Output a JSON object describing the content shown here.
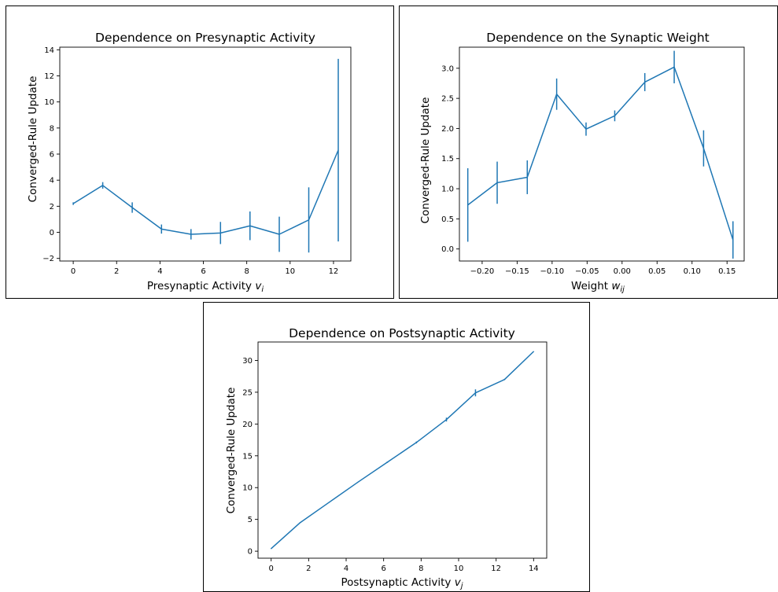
{
  "chart_data": [
    {
      "type": "line",
      "title": "Dependence on Presynaptic Activity",
      "xlabel": "Presynaptic Activity",
      "xlabel_var": "v",
      "xlabel_sub": "i",
      "ylabel": "Converged-Rule Update",
      "xlim": [
        -0.62,
        12.8
      ],
      "ylim": [
        -2.2,
        14.2
      ],
      "xticks": [
        0,
        2,
        4,
        6,
        8,
        10,
        12
      ],
      "yticks": [
        -2,
        0,
        2,
        4,
        6,
        8,
        10,
        12,
        14
      ],
      "xtick_labels": [
        "0",
        "2",
        "4",
        "6",
        "8",
        "10",
        "12"
      ],
      "ytick_labels": [
        "−2",
        "0",
        "2",
        "4",
        "6",
        "8",
        "10",
        "12",
        "14"
      ],
      "line_color": "#1f77b4",
      "grid": false,
      "series": [
        {
          "x": [
            0.0,
            1.36,
            2.72,
            4.07,
            5.43,
            6.79,
            8.15,
            9.5,
            10.86,
            12.22
          ],
          "y": [
            2.2,
            3.6,
            1.9,
            0.25,
            -0.15,
            -0.05,
            0.5,
            -0.15,
            0.95,
            6.3
          ],
          "yerr": [
            0.1,
            0.25,
            0.4,
            0.35,
            0.4,
            0.85,
            1.1,
            1.35,
            2.5,
            7.0
          ]
        }
      ]
    },
    {
      "type": "line",
      "title": "Dependence on the Synaptic Weight",
      "xlabel": "Weight",
      "xlabel_var": "w",
      "xlabel_sub": "ij",
      "ylabel": "Converged-Rule Update",
      "xlim": [
        -0.2325,
        0.1745
      ],
      "ylim": [
        -0.2,
        3.35
      ],
      "xticks": [
        -0.2,
        -0.15,
        -0.1,
        -0.05,
        0.0,
        0.05,
        0.1,
        0.15
      ],
      "yticks": [
        0.0,
        0.5,
        1.0,
        1.5,
        2.0,
        2.5,
        3.0
      ],
      "xtick_labels": [
        "−0.20",
        "−0.15",
        "−0.10",
        "−0.05",
        "0.00",
        "0.05",
        "0.10",
        "0.15"
      ],
      "ytick_labels": [
        "0.0",
        "0.5",
        "1.0",
        "1.5",
        "2.0",
        "2.5",
        "3.0"
      ],
      "line_color": "#1f77b4",
      "grid": false,
      "series": [
        {
          "x": [
            -0.2205,
            -0.1785,
            -0.1355,
            -0.0935,
            -0.0515,
            -0.0105,
            0.0325,
            0.0745,
            0.1165,
            0.1585
          ],
          "y": [
            0.73,
            1.1,
            1.19,
            2.57,
            1.99,
            2.21,
            2.77,
            3.02,
            1.67,
            0.15
          ],
          "yerr": [
            0.61,
            0.35,
            0.28,
            0.26,
            0.11,
            0.09,
            0.15,
            0.27,
            0.3,
            0.31
          ]
        }
      ]
    },
    {
      "type": "line",
      "title": "Dependence on Postsynaptic Activity",
      "xlabel": "Postsynaptic Activity",
      "xlabel_var": "v",
      "xlabel_sub": "j",
      "ylabel": "Converged-Rule Update",
      "xlim": [
        -0.7,
        14.7
      ],
      "ylim": [
        -1.1,
        32.9
      ],
      "xticks": [
        0,
        2,
        4,
        6,
        8,
        10,
        12,
        14
      ],
      "yticks": [
        0,
        5,
        10,
        15,
        20,
        25,
        30
      ],
      "xtick_labels": [
        "0",
        "2",
        "4",
        "6",
        "8",
        "10",
        "12",
        "14"
      ],
      "ytick_labels": [
        "0",
        "5",
        "10",
        "15",
        "20",
        "25",
        "30"
      ],
      "line_color": "#1f77b4",
      "grid": false,
      "series": [
        {
          "x": [
            0.0,
            1.55,
            3.1,
            4.65,
            6.2,
            7.75,
            9.35,
            10.9,
            12.45,
            14.0
          ],
          "y": [
            0.4,
            4.5,
            7.7,
            10.9,
            14.0,
            17.1,
            20.7,
            24.9,
            27.0,
            31.4
          ],
          "yerr": [
            0.05,
            0.05,
            0.05,
            0.05,
            0.1,
            0.15,
            0.3,
            0.55,
            0.1,
            0.05
          ]
        }
      ]
    }
  ]
}
